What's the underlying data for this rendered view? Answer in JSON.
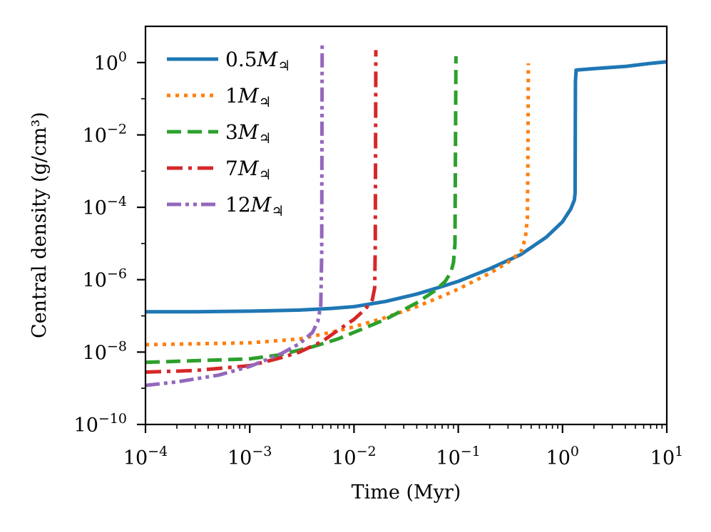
{
  "chart_data": {
    "type": "line",
    "xscale": "log",
    "yscale": "log",
    "xlabel": "Time (Myr)",
    "ylabel": "Central density (g/cm³)",
    "xlim": [
      0.0001,
      10
    ],
    "ylim": [
      1e-10,
      10
    ],
    "legend_position": "upper-left",
    "x_ticks": [
      {
        "value": 0.0001,
        "base": "10",
        "exp": "−4"
      },
      {
        "value": 0.001,
        "base": "10",
        "exp": "−3"
      },
      {
        "value": 0.01,
        "base": "10",
        "exp": "−2"
      },
      {
        "value": 0.1,
        "base": "10",
        "exp": "−1"
      },
      {
        "value": 1,
        "base": "10",
        "exp": "0"
      },
      {
        "value": 10,
        "base": "10",
        "exp": "1"
      }
    ],
    "y_ticks": [
      {
        "value": 1e-10,
        "base": "10",
        "exp": "−10"
      },
      {
        "value": 1e-08,
        "base": "10",
        "exp": "−8"
      },
      {
        "value": 1e-06,
        "base": "10",
        "exp": "−6"
      },
      {
        "value": 0.0001,
        "base": "10",
        "exp": "−4"
      },
      {
        "value": 0.01,
        "base": "10",
        "exp": "−2"
      },
      {
        "value": 1,
        "base": "10",
        "exp": "0"
      }
    ],
    "series": [
      {
        "name": "0.5M♃",
        "mass": "0.5",
        "color": "#1f77b4",
        "style": "solid",
        "x": [
          0.0001,
          0.0003,
          0.001,
          0.003,
          0.006,
          0.01,
          0.02,
          0.04,
          0.07,
          0.1,
          0.2,
          0.4,
          0.7,
          1.0,
          1.2,
          1.3,
          1.32,
          1.33,
          1.35,
          2,
          4,
          7,
          10
        ],
        "y": [
          1.3e-07,
          1.3e-07,
          1.35e-07,
          1.45e-07,
          1.6e-07,
          1.8e-07,
          2.5e-07,
          4e-07,
          6.5e-07,
          9e-07,
          2e-06,
          5e-06,
          1.5e-05,
          4e-05,
          9e-05,
          0.00016,
          0.00025,
          0.3,
          0.62,
          0.68,
          0.78,
          0.95,
          1.05
        ]
      },
      {
        "name": "1M♃",
        "mass": "1",
        "color": "#ff7f0e",
        "style": "dotted",
        "x": [
          0.0001,
          0.001,
          0.003,
          0.006,
          0.01,
          0.02,
          0.04,
          0.07,
          0.1,
          0.2,
          0.3,
          0.4,
          0.44,
          0.46,
          0.465,
          0.47
        ],
        "y": [
          1.6e-08,
          1.8e-08,
          2.3e-08,
          3.5e-08,
          5e-08,
          9e-08,
          1.8e-07,
          3.5e-07,
          5.5e-07,
          1.5e-06,
          3e-06,
          6e-06,
          1.4e-05,
          5e-05,
          0.001,
          0.95
        ]
      },
      {
        "name": "3M♃",
        "mass": "3",
        "color": "#2ca02c",
        "style": "dashed",
        "x": [
          0.0001,
          0.001,
          0.002,
          0.004,
          0.007,
          0.01,
          0.02,
          0.04,
          0.06,
          0.075,
          0.085,
          0.09,
          0.093,
          0.095
        ],
        "y": [
          5.2e-09,
          6.5e-09,
          8.5e-09,
          1.4e-08,
          2.3e-08,
          3.5e-08,
          8e-08,
          2.3e-07,
          5e-07,
          9e-07,
          1.6e-06,
          3e-06,
          1e-05,
          1.5
        ]
      },
      {
        "name": "7M♃",
        "mass": "7",
        "color": "#d62728",
        "style": "dashdot",
        "x": [
          0.0001,
          0.0003,
          0.001,
          0.002,
          0.003,
          0.005,
          0.007,
          0.01,
          0.013,
          0.015,
          0.0158,
          0.016,
          0.0162
        ],
        "y": [
          2.8e-09,
          3.1e-09,
          4.2e-09,
          7e-09,
          1e-08,
          2e-08,
          4e-08,
          8e-08,
          1.6e-07,
          2.8e-07,
          6e-07,
          1e-05,
          2.2
        ]
      },
      {
        "name": "12M♃",
        "mass": "12",
        "color": "#9467bd",
        "style": "dashdotdot",
        "x": [
          0.0001,
          0.0002,
          0.0005,
          0.001,
          0.002,
          0.003,
          0.004,
          0.0045,
          0.0048,
          0.0049,
          0.00495
        ],
        "y": [
          1.2e-09,
          1.5e-09,
          2.3e-09,
          4e-09,
          9e-09,
          1.7e-08,
          3.5e-08,
          7e-08,
          2e-07,
          5e-06,
          3.2
        ]
      }
    ]
  }
}
